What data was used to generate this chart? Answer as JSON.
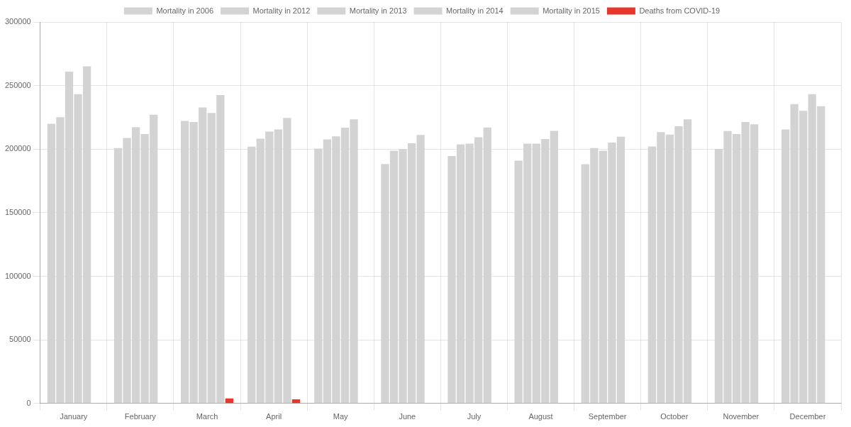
{
  "chart_data": {
    "type": "bar",
    "categories": [
      "January",
      "February",
      "March",
      "April",
      "May",
      "June",
      "July",
      "August",
      "September",
      "October",
      "November",
      "December"
    ],
    "series": [
      {
        "name": "Mortality in 2006",
        "color": "#d3d3d3",
        "values": [
          220000,
          200800,
          222200,
          201900,
          200400,
          188300,
          194600,
          191000,
          188100,
          202100,
          200200,
          215500
        ]
      },
      {
        "name": "Mortality in 2012",
        "color": "#d3d3d3",
        "values": [
          225100,
          208800,
          221300,
          208200,
          207700,
          198700,
          203800,
          204400,
          200800,
          213400,
          214200,
          235400
        ]
      },
      {
        "name": "Mortality in 2013",
        "color": "#d3d3d3",
        "values": [
          261000,
          217300,
          232800,
          213800,
          210000,
          200000,
          204400,
          204400,
          198700,
          211500,
          211900,
          230200
        ]
      },
      {
        "name": "Mortality in 2014",
        "color": "#d3d3d3",
        "values": [
          243300,
          211900,
          228400,
          215500,
          216900,
          204600,
          209400,
          207900,
          205200,
          218000,
          221300,
          243300
        ]
      },
      {
        "name": "Mortality in 2015",
        "color": "#d3d3d3",
        "values": [
          265200,
          227000,
          242600,
          224500,
          223400,
          211100,
          217000,
          214400,
          209800,
          223400,
          219600,
          233800
        ]
      },
      {
        "name": "Deaths from COVID-19",
        "color": "#e8362b",
        "values": [
          null,
          null,
          4000,
          3300,
          null,
          null,
          null,
          null,
          null,
          null,
          null,
          null
        ]
      }
    ],
    "ylim": [
      0,
      300000
    ],
    "yticks": [
      0,
      50000,
      100000,
      150000,
      200000,
      250000,
      300000
    ],
    "grid": true,
    "legend": "top"
  }
}
